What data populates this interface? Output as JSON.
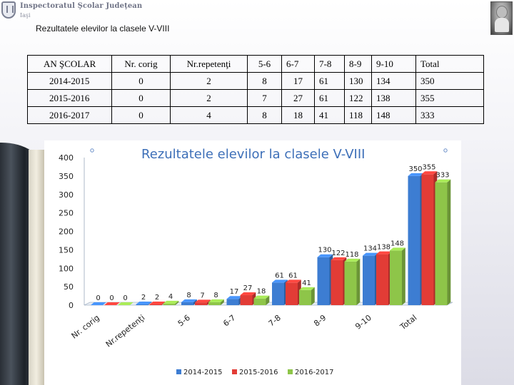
{
  "header": {
    "org": "Inspectoratul Şcolar Judeţean",
    "city": "Iaşi",
    "slide_title": "Rezultatele elevilor la clasele V-VIII"
  },
  "table": {
    "columns": [
      "AN ŞCOLAR",
      "Nr. corig",
      "Nr.repetenţi",
      "5-6",
      "6-7",
      "7-8",
      "8-9",
      "9-10",
      "Total"
    ],
    "rows": [
      [
        "2014-2015",
        "0",
        "2",
        "8",
        "17",
        "61",
        "130",
        "134",
        "350"
      ],
      [
        "2015-2016",
        "0",
        "2",
        "7",
        "27",
        "61",
        "122",
        "138",
        "355"
      ],
      [
        "2016-2017",
        "0",
        "4",
        "8",
        "18",
        "41",
        "118",
        "148",
        "333"
      ]
    ]
  },
  "chart_data": {
    "type": "bar",
    "title": "Rezultatele elevilor la clasele V-VIII",
    "categories": [
      "Nr. corig",
      "Nr.repetenţi",
      "5-6",
      "6-7",
      "7-8",
      "8-9",
      "9-10",
      "Total"
    ],
    "series": [
      {
        "name": "2014-2015",
        "values": [
          0,
          2,
          8,
          17,
          61,
          130,
          134,
          350
        ],
        "color": "#3d7dd2"
      },
      {
        "name": "2015-2016",
        "values": [
          0,
          2,
          7,
          27,
          61,
          122,
          138,
          355
        ],
        "color": "#e23c36"
      },
      {
        "name": "2016-2017",
        "values": [
          0,
          4,
          8,
          18,
          41,
          118,
          148,
          333
        ],
        "color": "#8ec549"
      }
    ],
    "y_ticks": [
      0,
      50,
      100,
      150,
      200,
      250,
      300,
      350,
      400
    ],
    "ylim": [
      0,
      400
    ],
    "grid": false,
    "legend": "bottom",
    "style": "3d-clustered"
  }
}
